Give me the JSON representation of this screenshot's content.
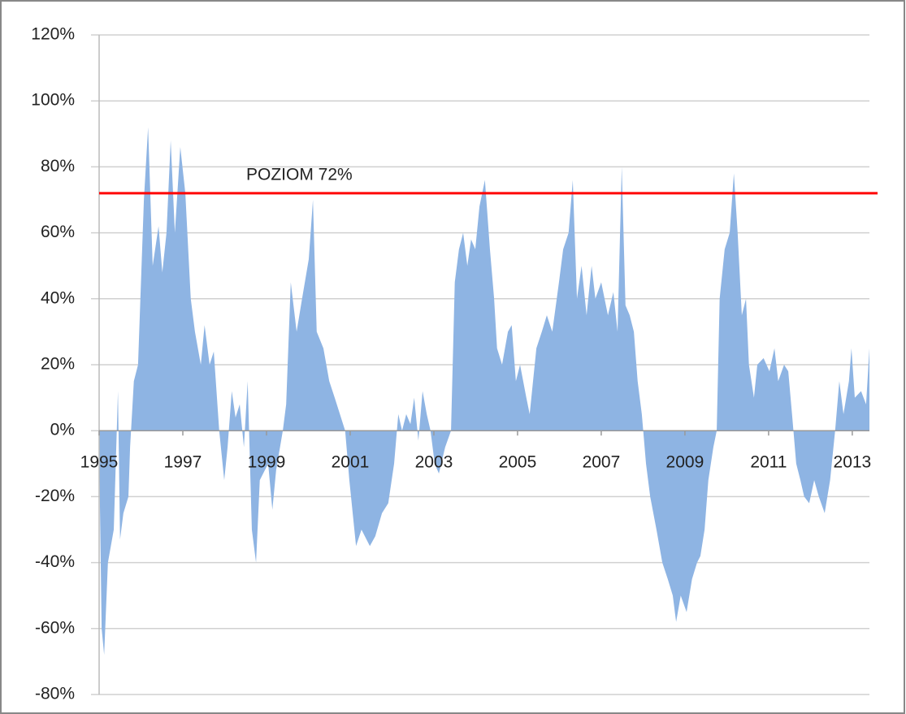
{
  "chart_data": {
    "type": "area",
    "x": [
      1995.0,
      1995.06,
      1995.12,
      1995.21,
      1995.35,
      1995.45,
      1995.5,
      1995.58,
      1995.7,
      1995.74,
      1995.83,
      1995.93,
      1996.07,
      1996.17,
      1996.28,
      1996.42,
      1996.51,
      1996.61,
      1996.71,
      1996.81,
      1996.94,
      1997.06,
      1997.19,
      1997.29,
      1997.43,
      1997.52,
      1997.64,
      1997.74,
      1997.87,
      1997.99,
      1998.07,
      1998.17,
      1998.26,
      1998.36,
      1998.46,
      1998.55,
      1998.65,
      1998.75,
      1998.84,
      1999.04,
      1999.14,
      1999.23,
      1999.39,
      1999.47,
      1999.58,
      1999.72,
      1999.85,
      2000.01,
      2000.11,
      2000.2,
      2000.36,
      2000.5,
      2000.63,
      2000.88,
      2000.98,
      2001.14,
      2001.27,
      2001.47,
      2001.6,
      2001.76,
      2001.91,
      2002.05,
      2002.15,
      2002.24,
      2002.34,
      2002.44,
      2002.53,
      2002.63,
      2002.73,
      2002.83,
      2002.92,
      2003.02,
      2003.12,
      2003.27,
      2003.41,
      2003.5,
      2003.6,
      2003.7,
      2003.8,
      2003.89,
      2003.99,
      2004.09,
      2004.22,
      2004.34,
      2004.44,
      2004.51,
      2004.63,
      2004.77,
      2004.86,
      2004.96,
      2005.06,
      2005.21,
      2005.29,
      2005.45,
      2005.58,
      2005.7,
      2005.83,
      2005.99,
      2006.09,
      2006.22,
      2006.32,
      2006.42,
      2006.53,
      2006.65,
      2006.77,
      2006.86,
      2007.0,
      2007.16,
      2007.29,
      2007.39,
      2007.49,
      2007.58,
      2007.68,
      2007.78,
      2007.87,
      2007.97,
      2008.07,
      2008.17,
      2008.32,
      2008.46,
      2008.59,
      2008.71,
      2008.79,
      2008.9,
      2009.04,
      2009.17,
      2009.29,
      2009.37,
      2009.47,
      2009.56,
      2009.68,
      2009.76,
      2009.83,
      2009.95,
      2010.07,
      2010.17,
      2010.26,
      2010.36,
      2010.46,
      2010.53,
      2010.65,
      2010.73,
      2010.88,
      2011.02,
      2011.14,
      2011.23,
      2011.37,
      2011.47,
      2011.56,
      2011.66,
      2011.76,
      2011.85,
      2011.97,
      2012.09,
      2012.2,
      2012.34,
      2012.47,
      2012.59,
      2012.69,
      2012.79,
      2012.92,
      2012.98,
      2013.06,
      2013.21,
      2013.33,
      2013.41
    ],
    "series": [
      {
        "color": "#8eb4e3",
        "values": [
          -5,
          -60,
          -68,
          -40,
          -30,
          12,
          -33,
          -25,
          -20,
          -5,
          15,
          20,
          70,
          92,
          50,
          62,
          48,
          60,
          88,
          60,
          86,
          72,
          40,
          30,
          20,
          32,
          20,
          24,
          0,
          -15,
          -5,
          12,
          4,
          8,
          -5,
          15,
          -30,
          -40,
          -15,
          -10,
          -24,
          -12,
          0,
          8,
          45,
          30,
          40,
          52,
          70,
          30,
          25,
          15,
          10,
          0,
          -15,
          -35,
          -30,
          -35,
          -32,
          -25,
          -22,
          -10,
          5,
          0,
          5,
          2,
          10,
          -3,
          12,
          5,
          0,
          -10,
          -13,
          -5,
          0,
          45,
          55,
          60,
          50,
          58,
          55,
          68,
          76,
          55,
          40,
          25,
          20,
          30,
          32,
          15,
          20,
          10,
          5,
          25,
          30,
          35,
          30,
          45,
          55,
          60,
          76,
          40,
          50,
          35,
          50,
          40,
          45,
          35,
          42,
          30,
          80,
          38,
          35,
          30,
          15,
          5,
          -10,
          -20,
          -30,
          -40,
          -45,
          -50,
          -58,
          -50,
          -55,
          -45,
          -40,
          -38,
          -30,
          -15,
          -5,
          0,
          40,
          55,
          60,
          78,
          60,
          35,
          40,
          20,
          10,
          20,
          22,
          18,
          25,
          15,
          20,
          18,
          5,
          -10,
          -15,
          -20,
          -22,
          -15,
          -20,
          -25,
          -15,
          0,
          15,
          5,
          15,
          25,
          10,
          12,
          8,
          25
        ]
      }
    ],
    "xlim": [
      1995,
      2013.41
    ],
    "xticks": [
      1995,
      1997,
      1999,
      2001,
      2003,
      2005,
      2007,
      2009,
      2011,
      2013
    ],
    "ylim": [
      -80,
      120
    ],
    "yticks": [
      {
        "value": -80,
        "label": "-80%"
      },
      {
        "value": -60,
        "label": "-60%"
      },
      {
        "value": -40,
        "label": "-40%"
      },
      {
        "value": -20,
        "label": "-20%"
      },
      {
        "value": 0,
        "label": "0%"
      },
      {
        "value": 20,
        "label": "20%"
      },
      {
        "value": 40,
        "label": "40%"
      },
      {
        "value": 60,
        "label": "60%"
      },
      {
        "value": 80,
        "label": "80%"
      },
      {
        "value": 100,
        "label": "100%"
      },
      {
        "value": 120,
        "label": "120%"
      }
    ],
    "grid": true,
    "hline": {
      "value": 72,
      "label": "POZIOM 72%",
      "color": "#ff0000"
    }
  }
}
